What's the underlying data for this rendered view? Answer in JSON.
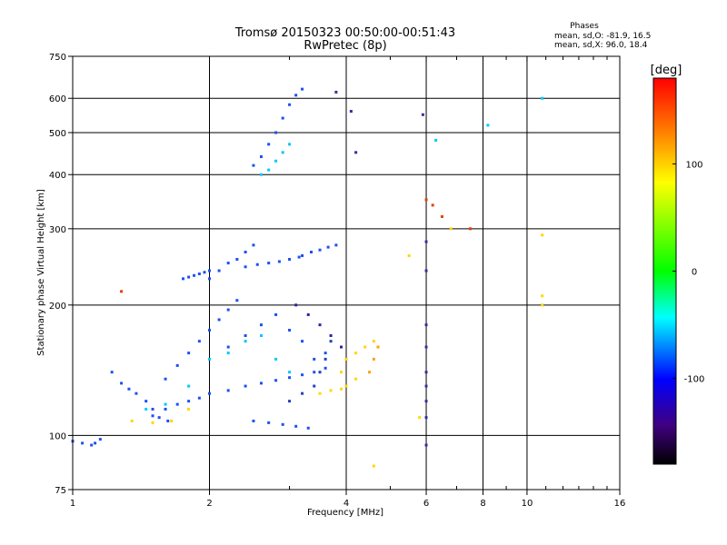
{
  "chart_data": {
    "type": "scatter",
    "title": "Tromsø 20150323 00:50:00-00:51:43",
    "subtitle": "RwPretec (8p)",
    "xlabel": "Frequency [MHz]",
    "ylabel": "Stationary phase Virtual Height [km]",
    "x_scale": "log",
    "y_scale": "log",
    "xlim": [
      1,
      16
    ],
    "ylim": [
      75,
      750
    ],
    "grid": true,
    "x_ticks": [
      1,
      2,
      4,
      6,
      8,
      10,
      16
    ],
    "x_tick_labels": [
      "1",
      "2",
      "4",
      "6",
      "8",
      "10",
      "16"
    ],
    "x_minor_ticks": [
      3,
      5,
      7,
      9,
      11,
      12,
      13,
      14,
      15
    ],
    "y_ticks": [
      75,
      100,
      200,
      300,
      400,
      500,
      600,
      750
    ],
    "y_tick_labels": [
      "75",
      "100",
      "200",
      "300",
      "400",
      "500",
      "600",
      "750"
    ],
    "stats": {
      "heading": "Phases",
      "line_o": "mean, sd,O: -81.9, 16.5",
      "line_x": "mean, sd,X:  96.0, 18.4"
    },
    "colorbar": {
      "label": "[deg]",
      "range": [
        -180,
        180
      ],
      "ticks": [
        100,
        0,
        -100
      ],
      "tick_labels": [
        "100",
        "0",
        "-100"
      ],
      "colors": [
        "#ff0000",
        "#ff8000",
        "#ffff00",
        "#00ff00",
        "#00ffff",
        "#0000ff",
        "#400080",
        "#000000"
      ]
    },
    "series": [
      {
        "color": "#1e50f0",
        "x": [
          1.0,
          1.05,
          1.1,
          1.12,
          1.15
        ],
        "y": [
          97,
          96,
          95,
          96,
          98
        ]
      },
      {
        "color": "#1e50f0",
        "x": [
          1.22,
          1.28,
          1.33,
          1.38,
          1.45,
          1.5,
          1.55,
          1.62
        ],
        "y": [
          140,
          132,
          128,
          125,
          120,
          115,
          110,
          108
        ]
      },
      {
        "color": "#1e50f0",
        "x": [
          1.5,
          1.6,
          1.7,
          1.8,
          1.9,
          2.0,
          2.2,
          2.4,
          2.6,
          2.8,
          3.0,
          3.2,
          3.4,
          3.6
        ],
        "y": [
          111,
          115,
          118,
          120,
          122,
          125,
          127,
          130,
          132,
          134,
          136,
          138,
          140,
          143
        ]
      },
      {
        "color": "#1e50f0",
        "x": [
          1.6,
          1.7,
          1.8,
          1.9,
          2.0,
          2.1,
          2.2,
          2.3
        ],
        "y": [
          135,
          145,
          155,
          165,
          175,
          185,
          195,
          205
        ]
      },
      {
        "color": "#1e50f0",
        "x": [
          1.75,
          1.8,
          1.85,
          1.9,
          1.95,
          2.0
        ],
        "y": [
          230,
          232,
          234,
          236,
          238,
          240
        ]
      },
      {
        "color": "#1e50f0",
        "x": [
          2.0,
          2.1,
          2.2,
          2.3,
          2.4,
          2.5
        ],
        "y": [
          230,
          240,
          250,
          255,
          265,
          275
        ]
      },
      {
        "color": "#1e50f0",
        "x": [
          2.4,
          2.55,
          2.7,
          2.85,
          3.0,
          3.15
        ],
        "y": [
          245,
          248,
          250,
          252,
          255,
          258
        ]
      },
      {
        "color": "#1e50f0",
        "x": [
          3.2,
          3.35,
          3.5,
          3.65,
          3.8
        ],
        "y": [
          260,
          265,
          268,
          272,
          275
        ]
      },
      {
        "color": "#1e50f0",
        "x": [
          2.5,
          2.6,
          2.7,
          2.8,
          2.9,
          3.0,
          3.1,
          3.2
        ],
        "y": [
          420,
          440,
          470,
          500,
          540,
          580,
          610,
          630
        ]
      },
      {
        "color": "#1e50f0",
        "x": [
          2.5,
          2.7,
          2.9,
          3.1,
          3.3
        ],
        "y": [
          108,
          107,
          106,
          105,
          104
        ]
      },
      {
        "color": "#1e50f0",
        "x": [
          2.2,
          2.4,
          2.6,
          2.8,
          3.0,
          3.2,
          3.4,
          3.6
        ],
        "y": [
          160,
          170,
          180,
          190,
          175,
          165,
          150,
          155
        ]
      },
      {
        "color": "#2040c0",
        "x": [
          3.0,
          3.2,
          3.4,
          3.5,
          3.6,
          3.7
        ],
        "y": [
          120,
          125,
          130,
          140,
          150,
          165
        ]
      },
      {
        "color": "#3020a0",
        "x": [
          3.1,
          3.3,
          3.5,
          3.7,
          3.9
        ],
        "y": [
          200,
          190,
          180,
          170,
          160
        ]
      },
      {
        "color": "#00c8ff",
        "x": [
          1.45,
          1.6,
          1.8,
          2.0,
          2.2,
          2.4,
          2.6,
          2.8,
          3.0
        ],
        "y": [
          115,
          118,
          130,
          150,
          155,
          165,
          170,
          150,
          140
        ]
      },
      {
        "color": "#00c8ff",
        "x": [
          2.6,
          2.7,
          2.8,
          2.9,
          3.0
        ],
        "y": [
          400,
          410,
          430,
          450,
          470
        ]
      },
      {
        "color": "#00c8ff",
        "x": [
          8.2,
          6.3,
          10.8
        ],
        "y": [
          520,
          480,
          600
        ]
      },
      {
        "color": "#ffd700",
        "x": [
          3.5,
          3.7,
          3.9,
          4.0,
          4.2
        ],
        "y": [
          125,
          127,
          128,
          130,
          135
        ]
      },
      {
        "color": "#ffd700",
        "x": [
          3.9,
          4.0,
          4.2,
          4.4,
          4.6
        ],
        "y": [
          140,
          150,
          155,
          160,
          165
        ]
      },
      {
        "color": "#ffd700",
        "x": [
          1.35,
          1.5,
          1.65,
          1.8
        ],
        "y": [
          108,
          107,
          108,
          115
        ]
      },
      {
        "color": "#ffd700",
        "x": [
          10.8,
          10.8,
          10.8,
          5.8,
          6.8,
          4.6,
          5.5
        ],
        "y": [
          200,
          210,
          290,
          110,
          300,
          85,
          260
        ]
      },
      {
        "color": "#ffa000",
        "x": [
          4.5,
          4.6,
          4.7
        ],
        "y": [
          140,
          150,
          160
        ]
      },
      {
        "color": "#e04000",
        "x": [
          6.0,
          6.2,
          6.5,
          7.5,
          1.28
        ],
        "y": [
          350,
          340,
          320,
          300,
          215
        ]
      },
      {
        "color": "#3030a0",
        "x": [
          6.0,
          6.0,
          6.0,
          6.0,
          6.0,
          6.0,
          6.0,
          6.0,
          6.0
        ],
        "y": [
          95,
          110,
          120,
          130,
          140,
          160,
          180,
          240,
          280
        ]
      },
      {
        "color": "#3030a0",
        "x": [
          5.9,
          4.1,
          4.2,
          3.8
        ],
        "y": [
          550,
          560,
          450,
          620
        ]
      }
    ]
  }
}
